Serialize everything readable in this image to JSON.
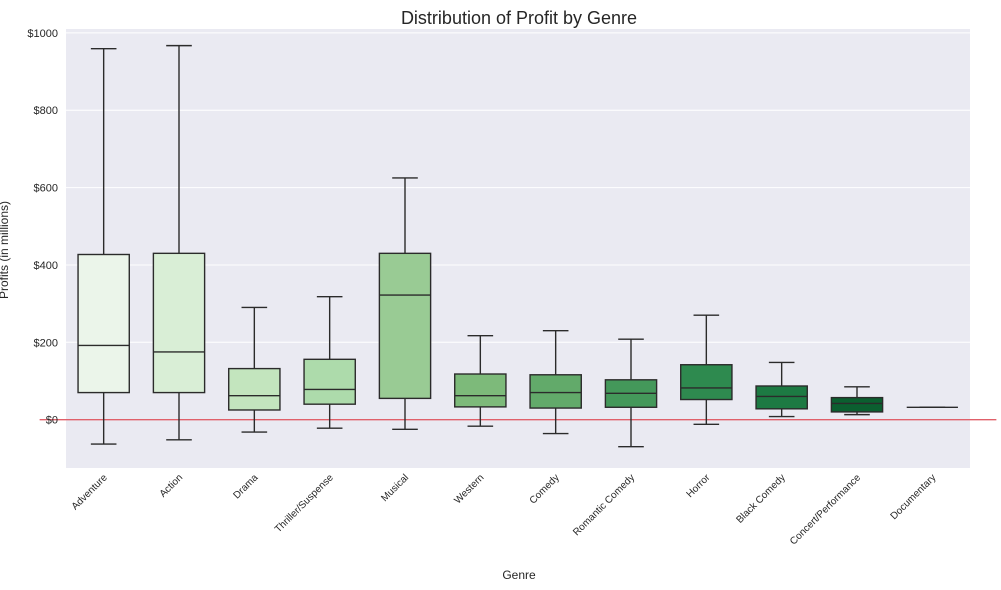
{
  "chart_data": {
    "type": "box",
    "title": "Distribution of Profit by Genre",
    "xlabel": "Genre",
    "ylabel": "Profits (in millions)",
    "ylim": [
      -125,
      1010
    ],
    "yticks": [
      0,
      200,
      400,
      600,
      800,
      1000
    ],
    "ytick_labels": [
      "$0",
      "$200",
      "$400",
      "$600",
      "$800",
      "$1000"
    ],
    "grid": true,
    "reference_line": {
      "y": 0,
      "color": "#e0606a"
    },
    "categories": [
      "Adventure",
      "Action",
      "Drama",
      "Thriller/Suspense",
      "Musical",
      "Western",
      "Comedy",
      "Romantic Comedy",
      "Horror",
      "Black Comedy",
      "Concert/Performance",
      "Documentary"
    ],
    "boxes": [
      {
        "label": "Adventure",
        "whisker_low": -63,
        "q1": 70,
        "median": 192,
        "q3": 427,
        "whisker_high": 959,
        "color": "#ebf5ea"
      },
      {
        "label": "Action",
        "whisker_low": -52,
        "q1": 70,
        "median": 175,
        "q3": 430,
        "whisker_high": 967,
        "color": "#d9eed6"
      },
      {
        "label": "Drama",
        "whisker_low": -32,
        "q1": 25,
        "median": 62,
        "q3": 132,
        "whisker_high": 290,
        "color": "#c3e5be"
      },
      {
        "label": "Thriller/Suspense",
        "whisker_low": -22,
        "q1": 40,
        "median": 78,
        "q3": 156,
        "whisker_high": 318,
        "color": "#addbab"
      },
      {
        "label": "Musical",
        "whisker_low": -25,
        "q1": 55,
        "median": 322,
        "q3": 430,
        "whisker_high": 625,
        "color": "#99cb94"
      },
      {
        "label": "Western",
        "whisker_low": -17,
        "q1": 33,
        "median": 62,
        "q3": 118,
        "whisker_high": 217,
        "color": "#7dba7a"
      },
      {
        "label": "Comedy",
        "whisker_low": -36,
        "q1": 30,
        "median": 70,
        "q3": 116,
        "whisker_high": 230,
        "color": "#62aa6a"
      },
      {
        "label": "Romantic Comedy",
        "whisker_low": -70,
        "q1": 32,
        "median": 68,
        "q3": 103,
        "whisker_high": 208,
        "color": "#44985a"
      },
      {
        "label": "Horror",
        "whisker_low": -12,
        "q1": 52,
        "median": 82,
        "q3": 142,
        "whisker_high": 270,
        "color": "#2e8a4f"
      },
      {
        "label": "Black Comedy",
        "whisker_low": 8,
        "q1": 28,
        "median": 60,
        "q3": 87,
        "whisker_high": 148,
        "color": "#1d7a43"
      },
      {
        "label": "Concert/Performance",
        "whisker_low": 13,
        "q1": 20,
        "median": 42,
        "q3": 57,
        "whisker_high": 85,
        "color": "#0b5f30"
      },
      {
        "label": "Documentary",
        "whisker_low": 32,
        "q1": 32,
        "median": 32,
        "q3": 32,
        "whisker_high": 32,
        "color": "#0b4d28"
      }
    ]
  }
}
